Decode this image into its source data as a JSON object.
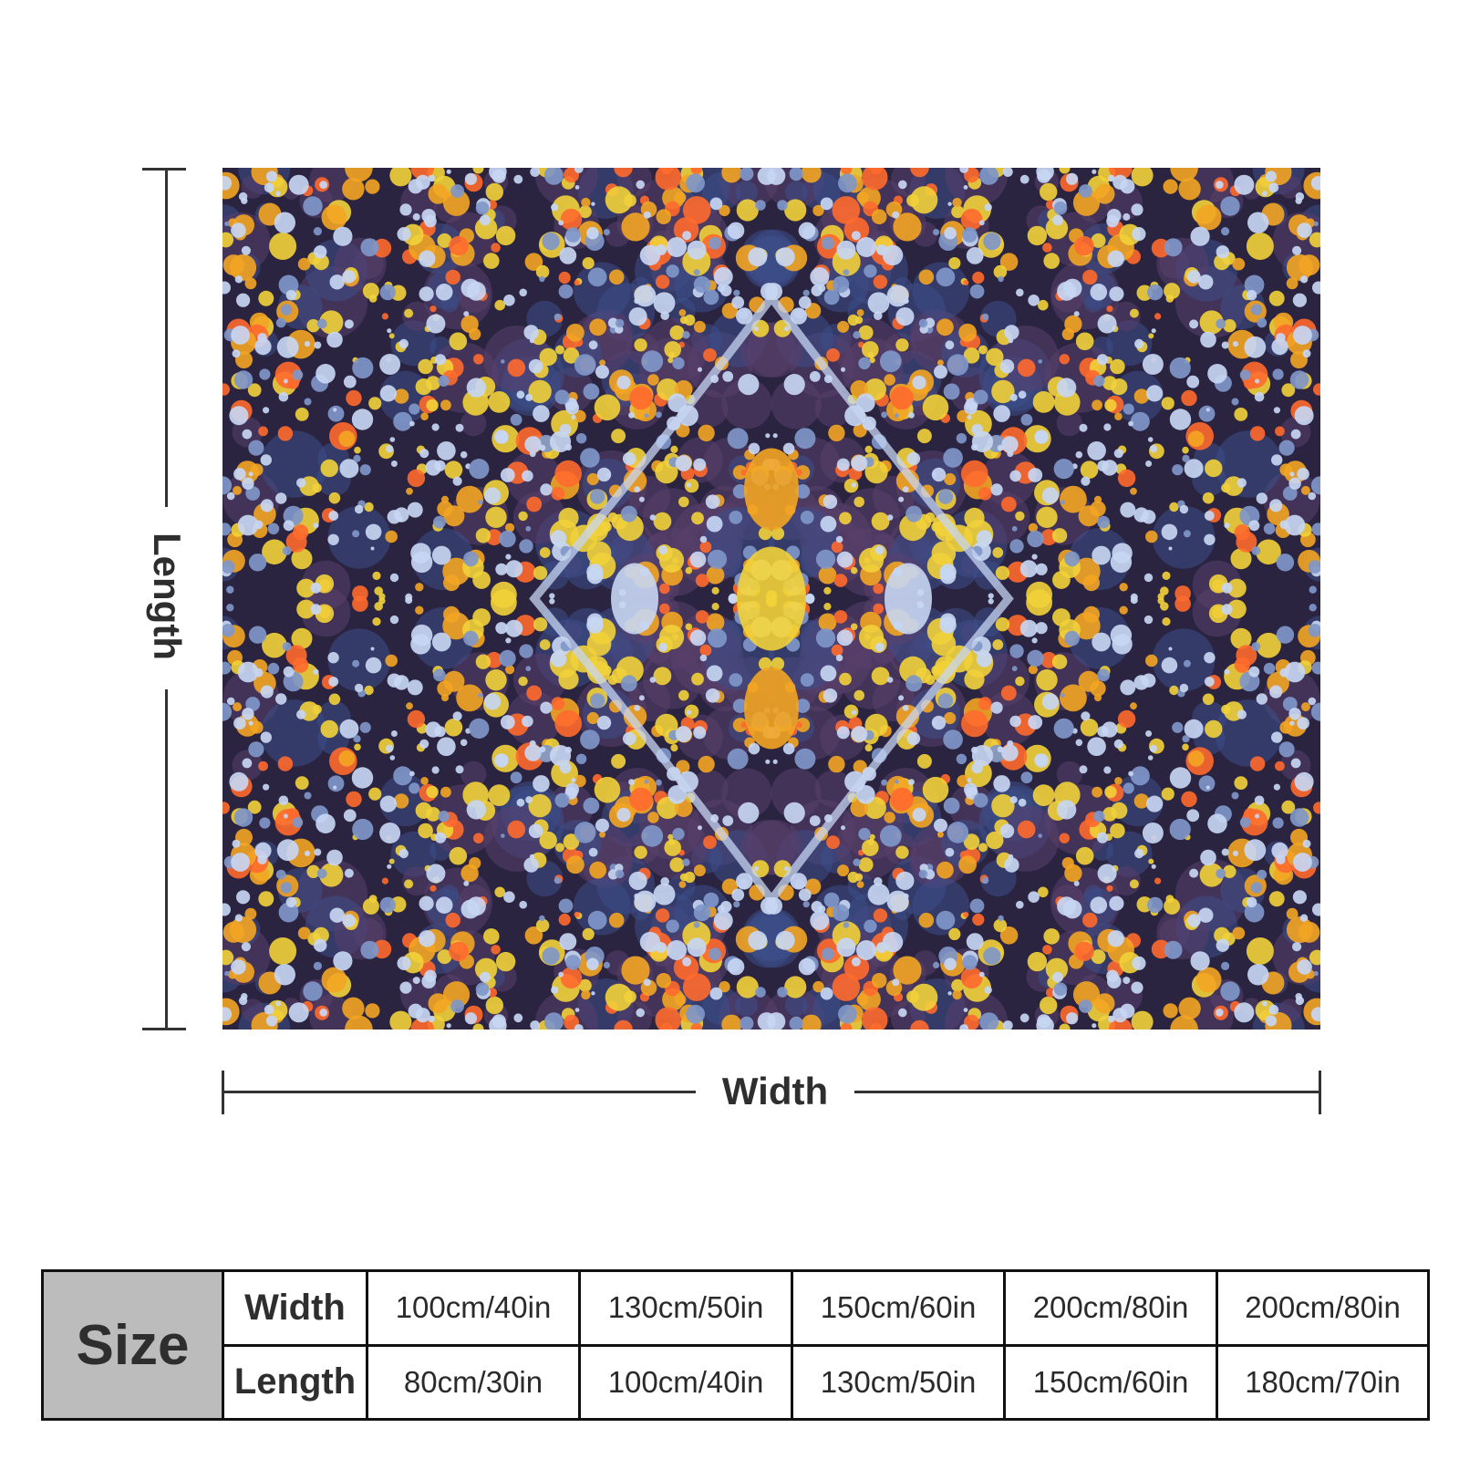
{
  "dimension_labels": {
    "length": "Length",
    "width": "Width"
  },
  "artwork": {
    "palette": [
      "#2a2440",
      "#f2d23a",
      "#ff6a2e",
      "#f3a524",
      "#c7d6f2",
      "#7f97c9",
      "#3d4e8a",
      "#5a3f6b"
    ]
  },
  "size_table": {
    "header": "Size",
    "rows": [
      {
        "label": "Width",
        "values": [
          "100cm/40in",
          "130cm/50in",
          "150cm/60in",
          "200cm/80in",
          "200cm/80in"
        ]
      },
      {
        "label": "Length",
        "values": [
          "80cm/30in",
          "100cm/40in",
          "130cm/50in",
          "150cm/60in",
          "180cm/70in"
        ]
      }
    ]
  }
}
